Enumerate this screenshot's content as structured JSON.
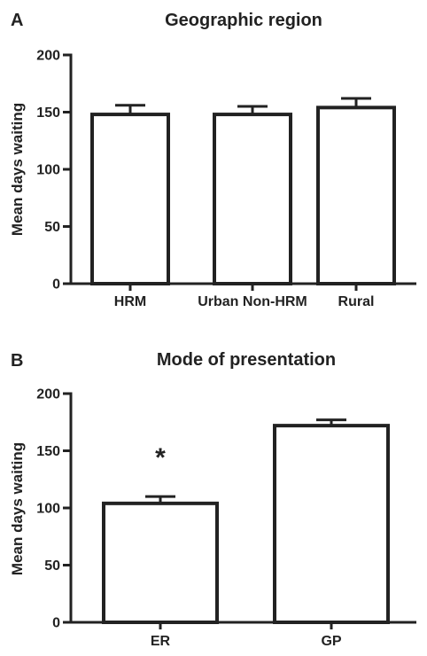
{
  "chart_data": [
    {
      "type": "bar",
      "panel_label": "A",
      "title": "Geographic region",
      "xlabel": "",
      "ylabel": "Mean days waiting",
      "categories": [
        "HRM",
        "Urban Non-HRM",
        "Rural"
      ],
      "values": [
        148,
        148,
        154
      ],
      "error_upper": [
        156,
        155,
        162
      ],
      "ylim": [
        0,
        200
      ],
      "yticks": [
        0,
        50,
        100,
        150,
        200
      ],
      "grid": false,
      "bar_fill": "#ffffff",
      "bar_stroke": "#222222",
      "annotations": []
    },
    {
      "type": "bar",
      "panel_label": "B",
      "title": "Mode of presentation",
      "xlabel": "",
      "ylabel": "Mean days waiting",
      "categories": [
        "ER",
        "GP"
      ],
      "values": [
        104,
        172
      ],
      "error_upper": [
        110,
        177
      ],
      "ylim": [
        0,
        200
      ],
      "yticks": [
        0,
        50,
        100,
        150,
        200
      ],
      "grid": false,
      "bar_fill": "#ffffff",
      "bar_stroke": "#222222",
      "annotations": [
        {
          "category": "ER",
          "text": "*"
        }
      ]
    }
  ]
}
